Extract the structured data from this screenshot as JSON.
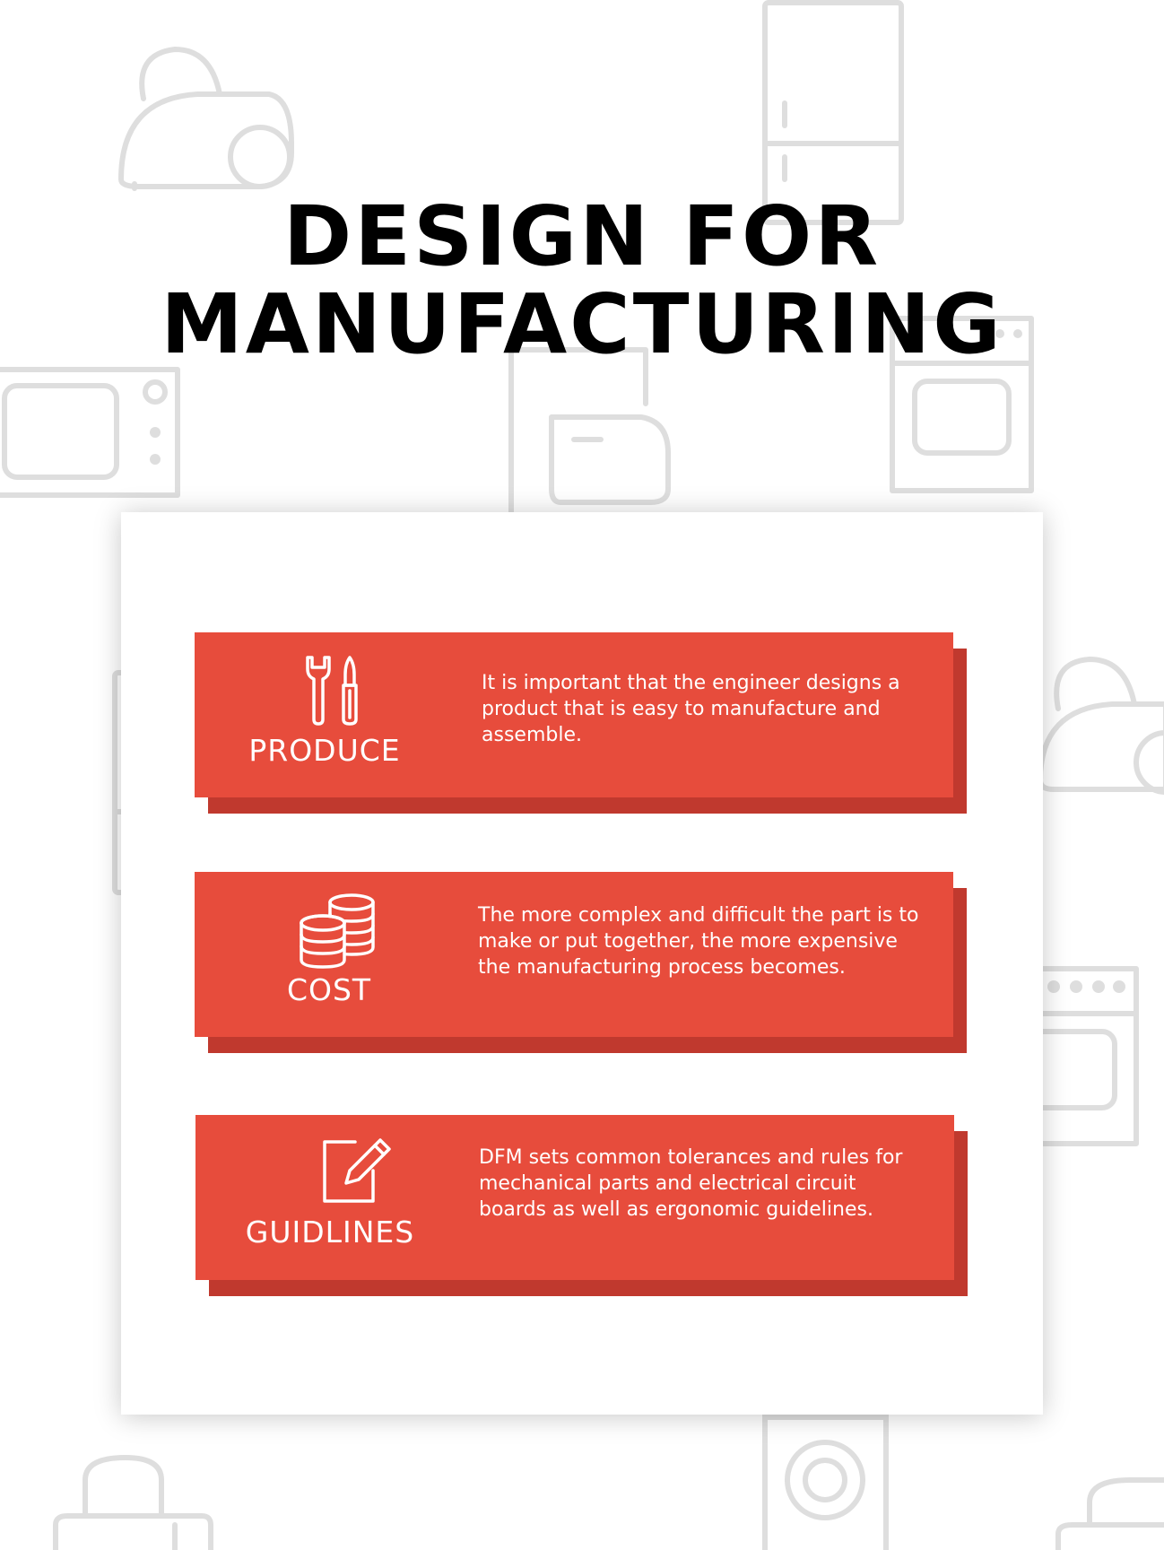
{
  "title": {
    "line1": "DESIGN FOR",
    "line2": "MANUFACTURING"
  },
  "sections": [
    {
      "label": "PRODUCE",
      "icon": "tools-icon",
      "text": "It is important that the engineer designs a product that is easy to manufacture and assemble."
    },
    {
      "label": "COST",
      "icon": "coins-icon",
      "text": "The more complex and difficult the part is to make or put together, the more expensive the manufacturing process becomes."
    },
    {
      "label": "GUIDLINES",
      "icon": "edit-icon",
      "text": "DFM sets common tolerances and rules for mechanical parts and electrical circuit boards as well as ergonomic guidelines."
    }
  ],
  "colors": {
    "panel": "#e74c3c",
    "panel_shadow": "#c0392e",
    "title": "#000000",
    "background_icons": "#dedede"
  }
}
